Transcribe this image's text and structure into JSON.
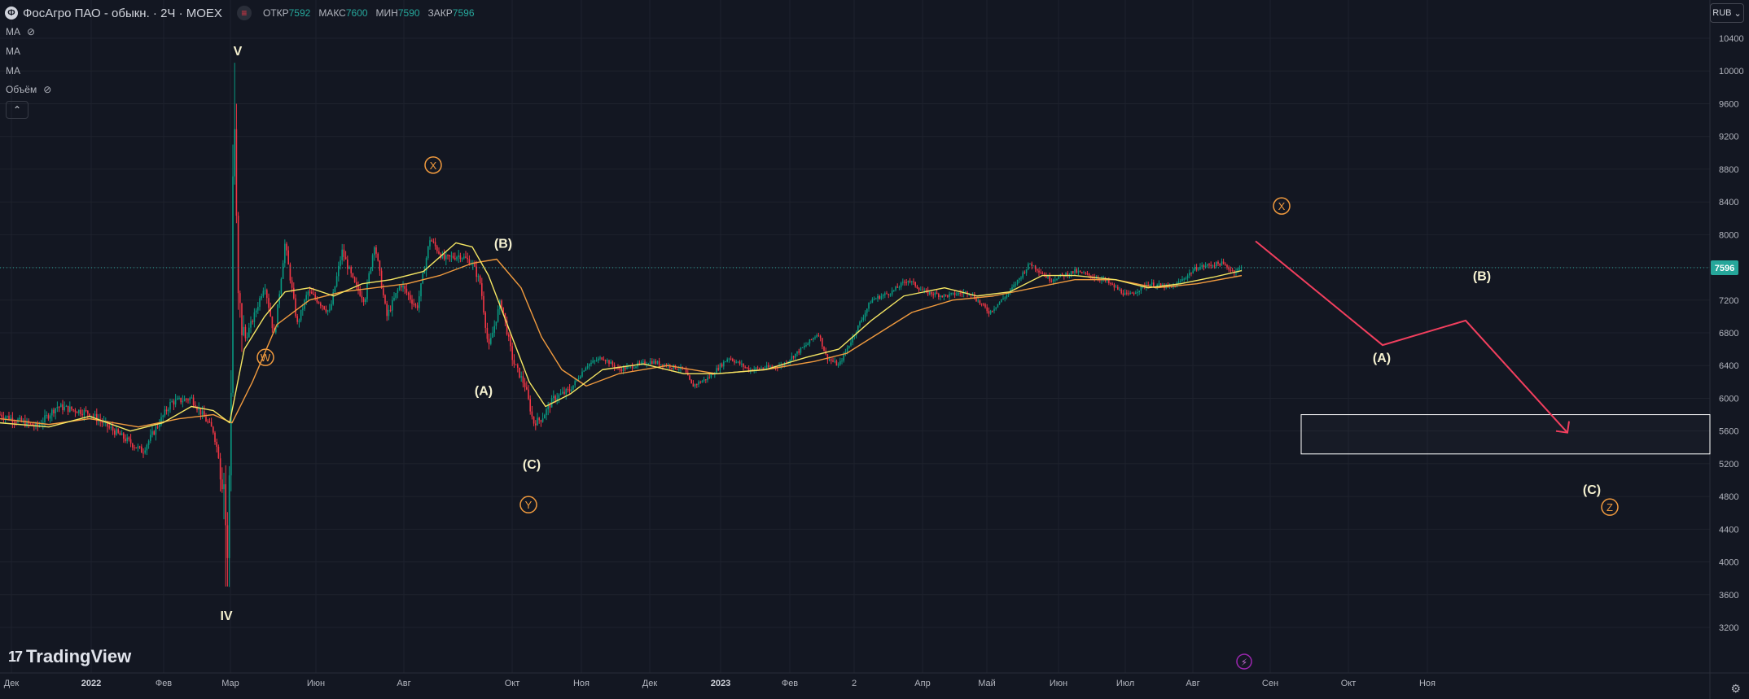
{
  "header": {
    "logo_glyph": "Ф",
    "symbol": "ФосАгро ПАО - обыкн. · 2Ч · MOEX",
    "menu_glyph": "≡",
    "ohlc": [
      {
        "label": "ОТКР",
        "value": "7592"
      },
      {
        "label": "МАКС",
        "value": "7600"
      },
      {
        "label": "МИН",
        "value": "7590"
      },
      {
        "label": "ЗАКР",
        "value": "7596"
      }
    ]
  },
  "indicators": [
    {
      "label": "MA",
      "eye": true
    },
    {
      "label": "MA",
      "eye": false
    },
    {
      "label": "MA",
      "eye": false
    },
    {
      "label": "Объём",
      "eye": true
    }
  ],
  "collapse_glyph": "⌃",
  "currency": {
    "label": "RUB",
    "caret": "⌄"
  },
  "branding": {
    "mark": "17",
    "name": "TradingView"
  },
  "settings_icon": "⚙",
  "colors": {
    "background": "#131722",
    "grid": "#1e222d",
    "axis_text": "#b2b5be",
    "candle_up": "#089981",
    "candle_down": "#f23645",
    "ma_fast": "#f5e663",
    "ma_slow": "#f09a3e",
    "last_price": "#26a69a",
    "wave_white": "#f5f1d0",
    "wave_orange": "#f09a3e",
    "forecast": "#f23f5e",
    "zone": "#ffffff"
  },
  "chart_data": {
    "type": "candlestick",
    "title": "ФосАгро ПАО - обыкн. · 2Ч · MOEX",
    "currency": "RUB",
    "ylim": [
      3100,
      10600
    ],
    "y_ticks": [
      3200,
      3600,
      4000,
      4400,
      4800,
      5200,
      5600,
      6000,
      6400,
      6800,
      7200,
      7600,
      8000,
      8400,
      8800,
      9200,
      9600,
      10000,
      10400
    ],
    "x_ticks": [
      "Дек",
      "2022",
      "Фев",
      "Мар",
      "Июн",
      "Авг",
      "Окт",
      "Ноя",
      "Дек",
      "2023",
      "Фев",
      "2",
      "Апр",
      "Май",
      "Июн",
      "Июл",
      "Авг",
      "Сен",
      "Окт",
      "Ноя"
    ],
    "last_price": 7596,
    "price_path": [
      [
        0,
        5800
      ],
      [
        45,
        5650
      ],
      [
        70,
        5900
      ],
      [
        110,
        5820
      ],
      [
        140,
        5600
      ],
      [
        175,
        5350
      ],
      [
        210,
        5950
      ],
      [
        235,
        6000
      ],
      [
        262,
        5600
      ],
      [
        276,
        4950
      ],
      [
        279,
        3750
      ],
      [
        284,
        6300
      ],
      [
        287,
        9950
      ],
      [
        292,
        7200
      ],
      [
        300,
        6700
      ],
      [
        312,
        7000
      ],
      [
        325,
        7400
      ],
      [
        337,
        6750
      ],
      [
        350,
        7900
      ],
      [
        365,
        6900
      ],
      [
        378,
        7300
      ],
      [
        390,
        7200
      ],
      [
        405,
        7050
      ],
      [
        420,
        7800
      ],
      [
        435,
        7400
      ],
      [
        448,
        7200
      ],
      [
        460,
        7900
      ],
      [
        475,
        7000
      ],
      [
        492,
        7400
      ],
      [
        512,
        7100
      ],
      [
        528,
        7950
      ],
      [
        545,
        7700
      ],
      [
        565,
        7750
      ],
      [
        580,
        7650
      ],
      [
        590,
        7400
      ],
      [
        600,
        6600
      ],
      [
        615,
        7200
      ],
      [
        630,
        6450
      ],
      [
        645,
        6150
      ],
      [
        655,
        5700
      ],
      [
        665,
        5750
      ],
      [
        680,
        6000
      ],
      [
        700,
        6100
      ],
      [
        720,
        6400
      ],
      [
        740,
        6500
      ],
      [
        760,
        6350
      ],
      [
        800,
        6450
      ],
      [
        840,
        6350
      ],
      [
        850,
        6150
      ],
      [
        870,
        6250
      ],
      [
        895,
        6500
      ],
      [
        920,
        6350
      ],
      [
        960,
        6400
      ],
      [
        990,
        6650
      ],
      [
        1005,
        6800
      ],
      [
        1015,
        6500
      ],
      [
        1030,
        6400
      ],
      [
        1050,
        6800
      ],
      [
        1070,
        7200
      ],
      [
        1095,
        7300
      ],
      [
        1115,
        7450
      ],
      [
        1135,
        7300
      ],
      [
        1160,
        7250
      ],
      [
        1190,
        7300
      ],
      [
        1215,
        7050
      ],
      [
        1240,
        7300
      ],
      [
        1265,
        7650
      ],
      [
        1290,
        7450
      ],
      [
        1320,
        7550
      ],
      [
        1355,
        7450
      ],
      [
        1385,
        7250
      ],
      [
        1410,
        7400
      ],
      [
        1440,
        7350
      ],
      [
        1470,
        7600
      ],
      [
        1500,
        7650
      ],
      [
        1515,
        7550
      ],
      [
        1525,
        7596
      ]
    ],
    "ma_fast": [
      [
        0,
        5700
      ],
      [
        60,
        5650
      ],
      [
        110,
        5780
      ],
      [
        160,
        5600
      ],
      [
        200,
        5700
      ],
      [
        235,
        5900
      ],
      [
        262,
        5850
      ],
      [
        282,
        5700
      ],
      [
        300,
        6600
      ],
      [
        325,
        7000
      ],
      [
        350,
        7300
      ],
      [
        380,
        7350
      ],
      [
        410,
        7250
      ],
      [
        445,
        7400
      ],
      [
        480,
        7450
      ],
      [
        520,
        7550
      ],
      [
        560,
        7900
      ],
      [
        580,
        7850
      ],
      [
        600,
        7500
      ],
      [
        625,
        6850
      ],
      [
        650,
        6200
      ],
      [
        670,
        5900
      ],
      [
        700,
        6050
      ],
      [
        740,
        6350
      ],
      [
        790,
        6420
      ],
      [
        840,
        6300
      ],
      [
        880,
        6300
      ],
      [
        940,
        6350
      ],
      [
        990,
        6500
      ],
      [
        1030,
        6600
      ],
      [
        1070,
        6950
      ],
      [
        1110,
        7250
      ],
      [
        1160,
        7350
      ],
      [
        1200,
        7250
      ],
      [
        1240,
        7300
      ],
      [
        1280,
        7500
      ],
      [
        1320,
        7500
      ],
      [
        1370,
        7450
      ],
      [
        1410,
        7350
      ],
      [
        1450,
        7400
      ],
      [
        1490,
        7480
      ],
      [
        1525,
        7560
      ]
    ],
    "ma_slow": [
      [
        0,
        5750
      ],
      [
        60,
        5680
      ],
      [
        110,
        5750
      ],
      [
        170,
        5650
      ],
      [
        220,
        5750
      ],
      [
        262,
        5800
      ],
      [
        285,
        5700
      ],
      [
        310,
        6200
      ],
      [
        340,
        6900
      ],
      [
        380,
        7200
      ],
      [
        420,
        7300
      ],
      [
        460,
        7350
      ],
      [
        500,
        7400
      ],
      [
        540,
        7500
      ],
      [
        580,
        7650
      ],
      [
        610,
        7700
      ],
      [
        640,
        7350
      ],
      [
        665,
        6750
      ],
      [
        690,
        6350
      ],
      [
        720,
        6150
      ],
      [
        760,
        6300
      ],
      [
        820,
        6400
      ],
      [
        880,
        6300
      ],
      [
        940,
        6350
      ],
      [
        1000,
        6450
      ],
      [
        1040,
        6550
      ],
      [
        1080,
        6800
      ],
      [
        1120,
        7050
      ],
      [
        1170,
        7200
      ],
      [
        1220,
        7250
      ],
      [
        1270,
        7350
      ],
      [
        1320,
        7450
      ],
      [
        1370,
        7450
      ],
      [
        1420,
        7350
      ],
      [
        1470,
        7400
      ],
      [
        1525,
        7500
      ]
    ],
    "wave_labels": [
      {
        "text": "V",
        "x": 292,
        "y": 10250,
        "style": "white"
      },
      {
        "text": "IV",
        "x": 278,
        "y": 3350,
        "style": "white"
      },
      {
        "text": "W",
        "x": 326,
        "y": 6500,
        "style": "circle"
      },
      {
        "text": "X",
        "x": 532,
        "y": 8850,
        "style": "circle"
      },
      {
        "text": "(B)",
        "x": 618,
        "y": 7900,
        "style": "white"
      },
      {
        "text": "(A)",
        "x": 594,
        "y": 6100,
        "style": "white"
      },
      {
        "text": "(C)",
        "x": 653,
        "y": 5200,
        "style": "white"
      },
      {
        "text": "Y",
        "x": 649,
        "y": 4700,
        "style": "circle"
      },
      {
        "text": "X",
        "x": 1574,
        "y": 8350,
        "style": "circle"
      },
      {
        "text": "(B)",
        "x": 1820,
        "y": 7500,
        "style": "white"
      },
      {
        "text": "(A)",
        "x": 1697,
        "y": 6500,
        "style": "white"
      },
      {
        "text": "(C)",
        "x": 1955,
        "y": 4890,
        "style": "white"
      },
      {
        "text": "Z",
        "x": 1977,
        "y": 4670,
        "style": "circle"
      }
    ],
    "forecast_path": [
      [
        1542,
        7920
      ],
      [
        1698,
        6650
      ],
      [
        1800,
        6950
      ],
      [
        1925,
        5580
      ]
    ],
    "target_zone": {
      "x": [
        1598,
        2100
      ],
      "y": [
        5320,
        5800
      ]
    }
  }
}
